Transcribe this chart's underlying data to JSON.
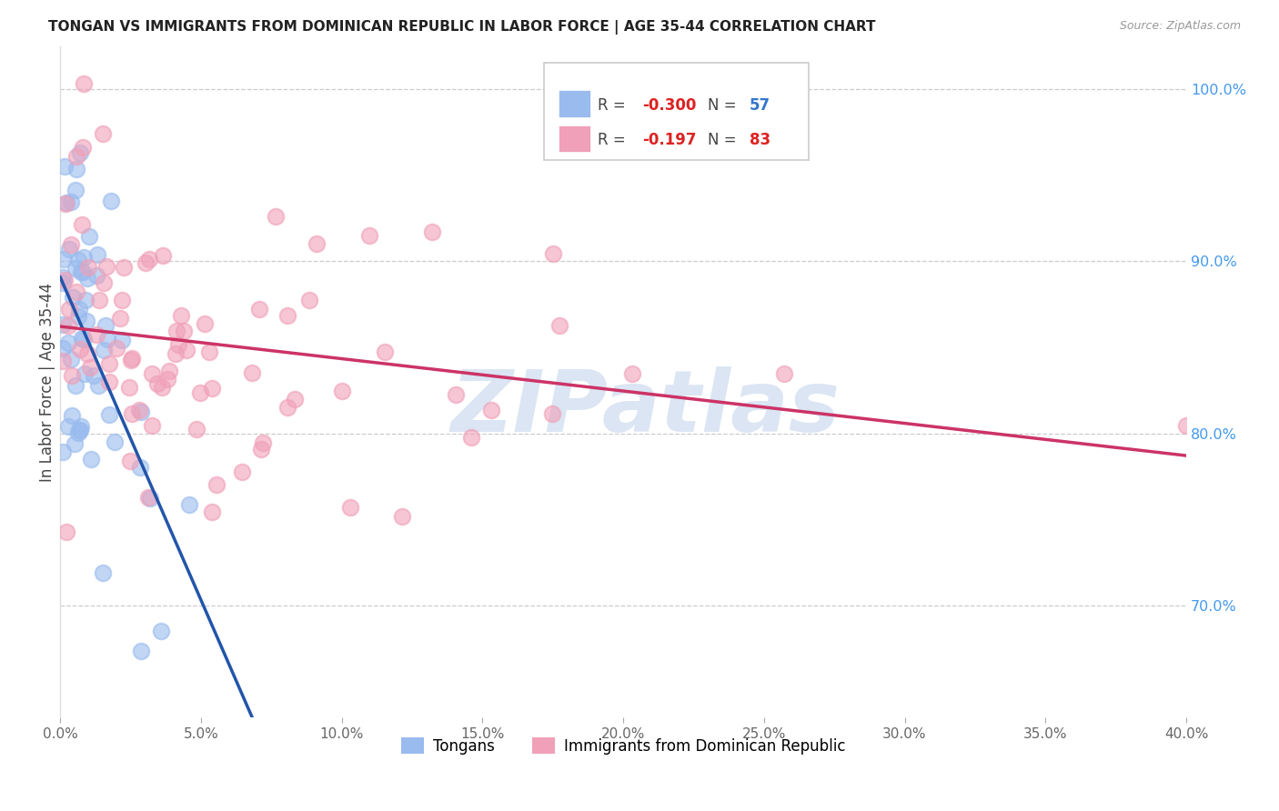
{
  "title": "TONGAN VS IMMIGRANTS FROM DOMINICAN REPUBLIC IN LABOR FORCE | AGE 35-44 CORRELATION CHART",
  "source": "Source: ZipAtlas.com",
  "ylabel": "In Labor Force | Age 35-44",
  "xlim": [
    0.0,
    0.4
  ],
  "ylim": [
    0.635,
    1.025
  ],
  "xticks": [
    0.0,
    0.05,
    0.1,
    0.15,
    0.2,
    0.25,
    0.3,
    0.35,
    0.4
  ],
  "yticks_right": [
    0.7,
    0.8,
    0.9,
    1.0
  ],
  "ytick_labels_right": [
    "70.0%",
    "80.0%",
    "90.0%",
    "100.0%"
  ],
  "xtick_labels": [
    "0.0%",
    "5.0%",
    "10.0%",
    "15.0%",
    "20.0%",
    "25.0%",
    "30.0%",
    "35.0%",
    "40.0%"
  ],
  "grid_color": "#cccccc",
  "background_color": "#ffffff",
  "tongan_color": "#99bbee",
  "dominican_color": "#f0a0b8",
  "tongan_R": -0.3,
  "tongan_N": 57,
  "dominican_R": -0.197,
  "dominican_N": 83,
  "trend_blue_color": "#2255aa",
  "trend_pink_color": "#cc3366",
  "trend_blue_dash_color": "#aaccee",
  "watermark": "ZIPatlas",
  "watermark_color": "#ccdaee",
  "blue_solid_xend": 0.2,
  "blue_dash_xend": 0.4,
  "pink_solid_xend": 0.4
}
